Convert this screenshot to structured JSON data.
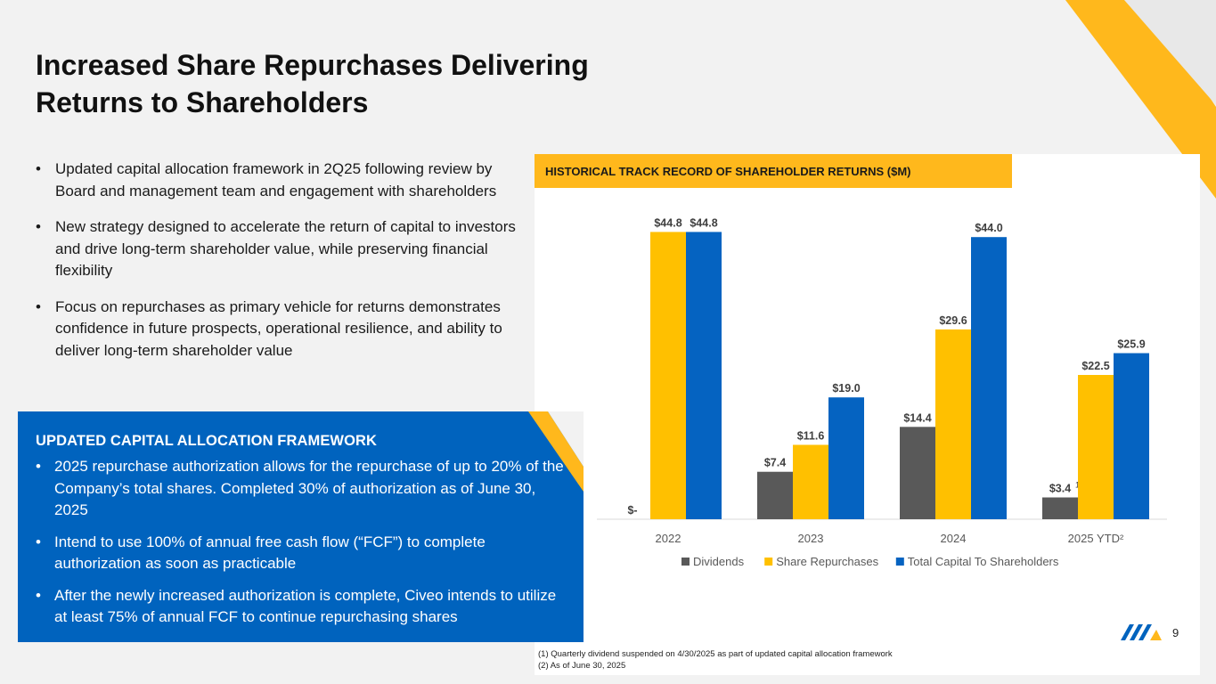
{
  "title": "Increased Share Repurchases Delivering Returns to Shareholders",
  "bullets": [
    "Updated capital allocation framework in 2Q25 following review by Board and management team and engagement with shareholders",
    "New strategy designed to accelerate the return of capital to investors and drive long-term shareholder value, while preserving financial flexibility",
    "Focus on repurchases as primary vehicle for returns demonstrates confidence in future prospects, operational resilience, and ability to deliver long-term shareholder value"
  ],
  "framework": {
    "heading": "UPDATED CAPITAL ALLOCATION FRAMEWORK",
    "items": [
      "2025 repurchase authorization allows for the repurchase of up to 20% of the Company’s total shares. Completed 30% of authorization as of June 30, 2025",
      "Intend to use 100% of annual free cash flow (“FCF”) to complete authorization as soon as practicable",
      "After the newly increased authorization is complete, Civeo intends to utilize at least 75% of annual FCF to continue repurchasing shares"
    ]
  },
  "chart_header": "HISTORICAL TRACK RECORD OF SHAREHOLDER RETURNS ($M)",
  "chart_data": {
    "type": "bar",
    "title": "HISTORICAL TRACK RECORD OF SHAREHOLDER RETURNS ($M)",
    "categories": [
      "2022",
      "2023",
      "2024",
      "2025 YTD²"
    ],
    "series": [
      {
        "name": "Dividends",
        "color": "#595959",
        "values": [
          0,
          7.4,
          14.4,
          3.4
        ],
        "labels": [
          "$-",
          "$7.4",
          "$14.4",
          "$3.4"
        ]
      },
      {
        "name": "Share Repurchases",
        "color": "#ffc000",
        "values": [
          44.8,
          11.6,
          29.6,
          22.5
        ],
        "labels": [
          "$44.8",
          "$11.6",
          "$29.6",
          "$22.5"
        ]
      },
      {
        "name": "Total Capital To Shareholders",
        "color": "#0563c1",
        "values": [
          44.8,
          19.0,
          44.0,
          25.9
        ],
        "labels": [
          "$44.8",
          "$19.0",
          "$44.0",
          "$25.9"
        ]
      }
    ],
    "superscript_note": {
      "category": "2025 YTD²",
      "series": "Dividends",
      "text": "1"
    },
    "ylim": [
      0,
      50
    ],
    "legend": "bottom",
    "grid": false
  },
  "footnotes": [
    "(1) Quarterly dividend suspended on 4/30/2025 as part of updated capital allocation framework",
    "(2) As of June 30, 2025"
  ],
  "page_number": "9",
  "colors": {
    "accent_yellow": "#ffb81c",
    "brand_blue": "#0063be"
  }
}
